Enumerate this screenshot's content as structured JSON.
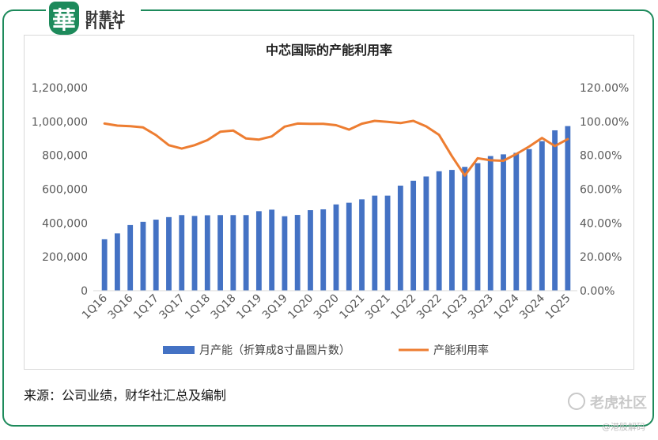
{
  "logo": {
    "cn": "財華社",
    "en": "FINET",
    "badge_char": "華"
  },
  "chart_data": {
    "type": "bar+line",
    "title": "中芯国际的产能利用率",
    "categories": [
      "1Q16",
      "2Q16",
      "3Q16",
      "4Q16",
      "1Q17",
      "2Q17",
      "3Q17",
      "4Q17",
      "1Q18",
      "2Q18",
      "3Q18",
      "4Q18",
      "1Q19",
      "2Q19",
      "3Q19",
      "4Q19",
      "1Q20",
      "2Q20",
      "3Q20",
      "4Q20",
      "1Q21",
      "2Q21",
      "3Q21",
      "4Q21",
      "1Q22",
      "2Q22",
      "3Q22",
      "4Q22",
      "1Q23",
      "2Q23",
      "3Q23",
      "4Q23",
      "1Q24",
      "2Q24",
      "3Q24",
      "4Q24",
      "1Q25"
    ],
    "x_tick_labels": [
      "1Q16",
      "3Q16",
      "1Q17",
      "3Q17",
      "1Q18",
      "3Q18",
      "1Q19",
      "3Q19",
      "1Q20",
      "3Q20",
      "1Q21",
      "3Q21",
      "1Q22",
      "3Q22",
      "1Q23",
      "3Q23",
      "1Q24",
      "3Q24",
      "1Q25"
    ],
    "series": [
      {
        "name": "月产能（折算成8寸晶圆片数）",
        "type": "bar",
        "axis": "left",
        "color": "#4472c4",
        "values": [
          304000,
          339000,
          388000,
          407000,
          420000,
          435000,
          447000,
          442000,
          446000,
          447000,
          447000,
          447000,
          470000,
          479000,
          440000,
          448000,
          476000,
          481000,
          510000,
          520000,
          540000,
          562000,
          562000,
          621000,
          650000,
          675000,
          706000,
          714000,
          732000,
          754000,
          796000,
          806000,
          815000,
          837000,
          884000,
          948000,
          973000
        ]
      },
      {
        "name": "产能利用率",
        "type": "line",
        "axis": "right",
        "color": "#ed7d31",
        "values": [
          98.8,
          97.6,
          97.2,
          96.5,
          92.0,
          86.0,
          84.0,
          86.0,
          89.0,
          94.0,
          94.7,
          90.0,
          89.3,
          91.2,
          97.0,
          98.8,
          98.6,
          98.6,
          97.8,
          95.2,
          98.7,
          100.4,
          99.8,
          99.1,
          100.4,
          97.1,
          92.1,
          79.5,
          68.1,
          78.3,
          77.1,
          76.8,
          80.8,
          85.2,
          90.3,
          85.5,
          89.6
        ]
      }
    ],
    "left_axis": {
      "min": 0,
      "max": 1200000,
      "ticks": [
        "0",
        "200,000",
        "400,000",
        "600,000",
        "800,000",
        "1,000,000",
        "1,200,000"
      ]
    },
    "right_axis": {
      "min": 0,
      "max": 120,
      "ticks": [
        "0.00%",
        "20.00%",
        "40.00%",
        "60.00%",
        "80.00%",
        "100.00%",
        "120.00%"
      ]
    },
    "legend_position": "bottom",
    "grid": false
  },
  "footer": {
    "source": "来源：公司业绩，财华社汇总及编制",
    "watermark": "老虎社区",
    "watermark_sub": "@港股解码"
  }
}
